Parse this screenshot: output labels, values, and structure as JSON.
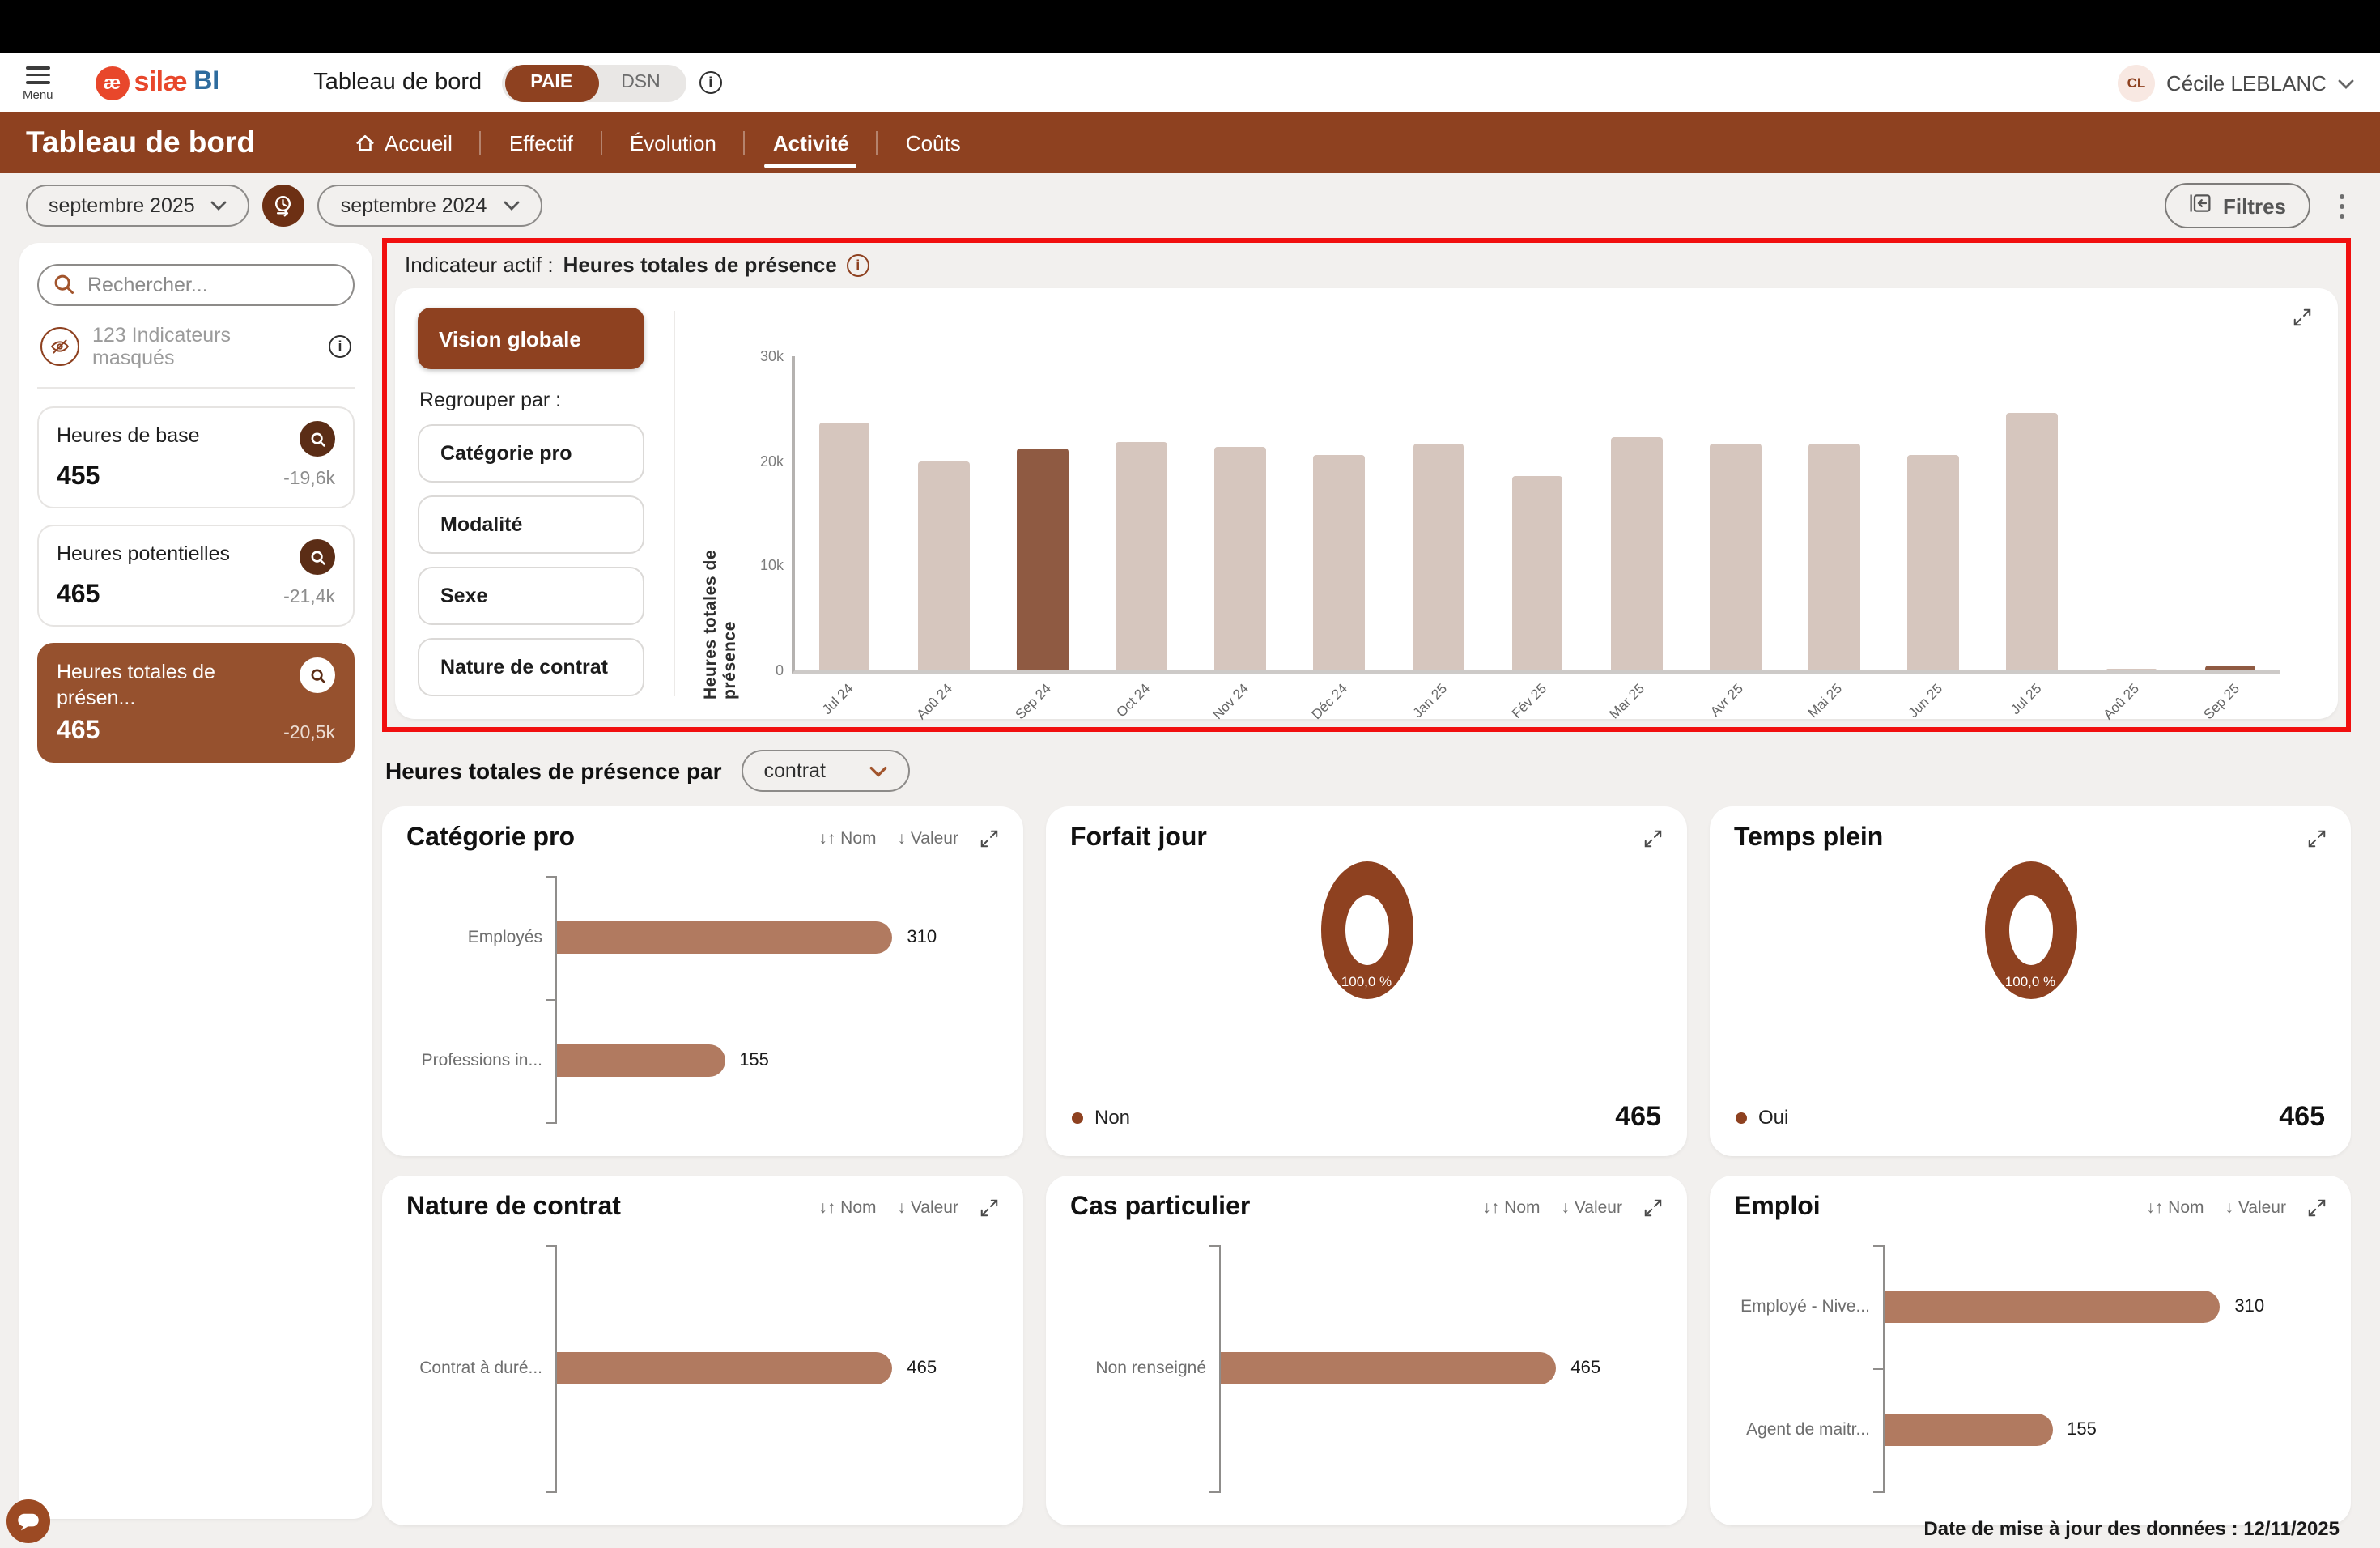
{
  "colors": {
    "primary_brown": "#8e4120",
    "selected_card_brown": "#96512e",
    "icon_circle_brown": "#5b2d16",
    "bar_light": "#d6c6be",
    "bar_highlight": "#8f5a42",
    "bar_medium": "#b17a60",
    "logo_red": "#e8472b",
    "logo_blue": "#2e6c9e",
    "highlight_border": "#f10f0f",
    "page_bg": "#f2f0ee"
  },
  "topbar": {
    "menu_label": "Menu",
    "logo_ae": "æ",
    "logo_text": "silæ",
    "logo_suffix": "BI",
    "app_title": "Tableau de bord",
    "toggle": {
      "options": [
        "PAIE",
        "DSN"
      ],
      "selected": "PAIE"
    },
    "user": {
      "initials": "CL",
      "name": "Cécile LEBLANC"
    }
  },
  "nav": {
    "title": "Tableau de bord",
    "items": [
      {
        "label": "Accueil",
        "icon": "home",
        "active": false
      },
      {
        "label": "Effectif",
        "active": false
      },
      {
        "label": "Évolution",
        "active": false
      },
      {
        "label": "Activité",
        "active": true
      },
      {
        "label": "Coûts",
        "active": false
      }
    ]
  },
  "filter_bar": {
    "period_main": "septembre 2025",
    "period_compare": "septembre 2024",
    "filters_label": "Filtres"
  },
  "sidebar": {
    "search_placeholder": "Rechercher...",
    "masked_label": "123 Indicateurs masqués",
    "indicators": [
      {
        "label": "Heures de base",
        "value": "455",
        "delta": "-19,6k",
        "selected": false
      },
      {
        "label": "Heures potentielles",
        "value": "465",
        "delta": "-21,4k",
        "selected": false
      },
      {
        "label": "Heures totales de présen...",
        "value": "465",
        "delta": "-20,5k",
        "selected": true
      }
    ]
  },
  "active_indicator": {
    "prefix": "Indicateur actif :",
    "name": "Heures totales de présence",
    "vision_button": "Vision globale",
    "group_by_label": "Regrouper par :",
    "group_buttons": [
      "Catégorie pro",
      "Modalité",
      "Sexe",
      "Nature de contrat"
    ]
  },
  "breakdown": {
    "title_prefix": "Heures totales de présence par",
    "dropdown_value": "contrat"
  },
  "cards_meta": {
    "sort_name": "Nom",
    "sort_value": "Valeur"
  },
  "chart_data": [
    {
      "type": "bar",
      "title": "Heures totales de présence",
      "ylabel": "Heures totales de présence",
      "ylim": [
        0,
        30000
      ],
      "yticks": [
        "0",
        "10k",
        "20k",
        "30k"
      ],
      "categories": [
        "Jul 24",
        "Aoû 24",
        "Sep 24",
        "Oct 24",
        "Nov 24",
        "Déc 24",
        "Jan 25",
        "Fév 25",
        "Mar 25",
        "Avr 25",
        "Mai 25",
        "Jun 25",
        "Jul 25",
        "Aoû 25",
        "Sep 25"
      ],
      "values": [
        23500,
        19800,
        20950,
        21600,
        21200,
        20400,
        21400,
        18300,
        22000,
        21500,
        21500,
        20400,
        24300,
        60,
        465
      ],
      "highlight_indices": [
        2,
        14
      ],
      "legend_position": "none",
      "grid": false
    },
    {
      "type": "bar",
      "orientation": "horizontal",
      "title": "Catégorie pro",
      "categories": [
        "Employés",
        "Professions in..."
      ],
      "values": [
        310,
        155
      ],
      "sortable": true
    },
    {
      "type": "pie",
      "title": "Forfait jour",
      "labels": [
        "Non"
      ],
      "values": [
        465
      ],
      "percent_label": "100,0 %",
      "sortable": false
    },
    {
      "type": "pie",
      "title": "Temps plein",
      "labels": [
        "Oui"
      ],
      "values": [
        465
      ],
      "percent_label": "100,0 %",
      "sortable": false
    },
    {
      "type": "bar",
      "orientation": "horizontal",
      "title": "Nature de contrat",
      "categories": [
        "Contrat à duré..."
      ],
      "values": [
        465
      ],
      "sortable": true
    },
    {
      "type": "bar",
      "orientation": "horizontal",
      "title": "Cas particulier",
      "categories": [
        "Non renseigné"
      ],
      "values": [
        465
      ],
      "sortable": true
    },
    {
      "type": "bar",
      "orientation": "horizontal",
      "title": "Emploi",
      "categories": [
        "Employé - Nive...",
        "Agent de maitr..."
      ],
      "values": [
        310,
        155
      ],
      "sortable": true
    }
  ],
  "footer": {
    "updated_label": "Date de mise à jour des données : 12/11/2025"
  }
}
